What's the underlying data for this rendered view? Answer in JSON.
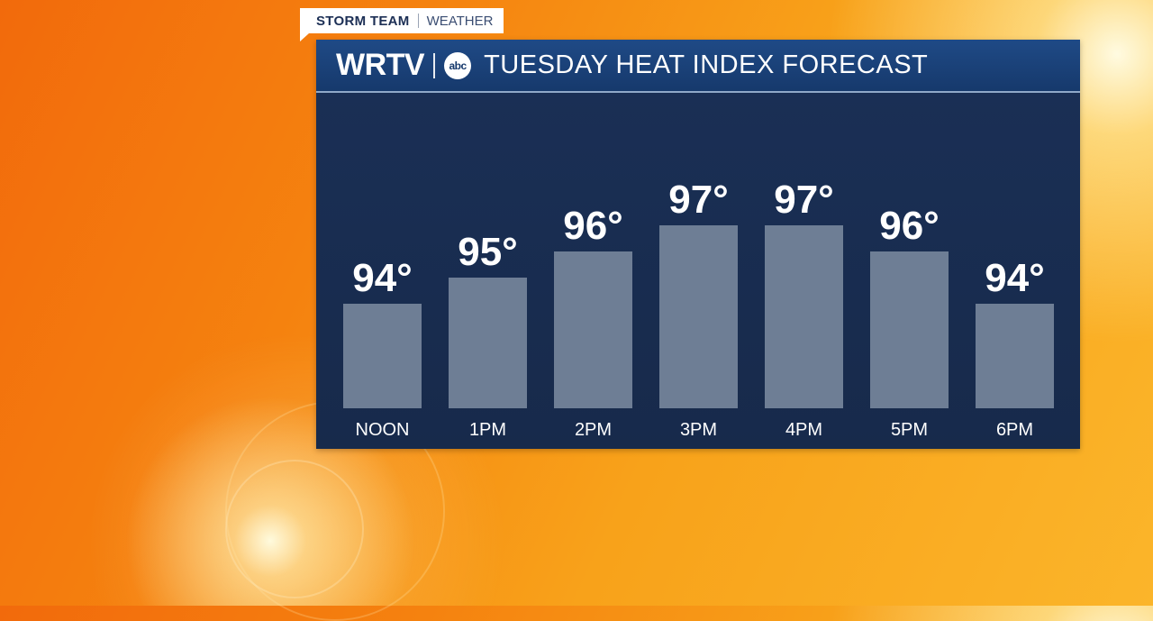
{
  "tag": {
    "team": "STORM TEAM",
    "section": "WEATHER"
  },
  "header": {
    "station": "WRTV",
    "network_logo": "abc",
    "title": "TUESDAY HEAT INDEX FORECAST"
  },
  "colors": {
    "bar": "#6e7e95",
    "panel": "#182b4c",
    "header": "#1f4a86",
    "text": "#ffffff"
  },
  "chart_data": {
    "type": "bar",
    "title": "TUESDAY HEAT INDEX FORECAST",
    "categories": [
      "NOON",
      "1PM",
      "2PM",
      "3PM",
      "4PM",
      "5PM",
      "6PM"
    ],
    "values": [
      94,
      95,
      96,
      97,
      97,
      96,
      94
    ],
    "value_labels": [
      "94°",
      "95°",
      "96°",
      "97°",
      "97°",
      "96°",
      "94°"
    ],
    "unit": "°F",
    "grid": false,
    "legend": "none"
  }
}
